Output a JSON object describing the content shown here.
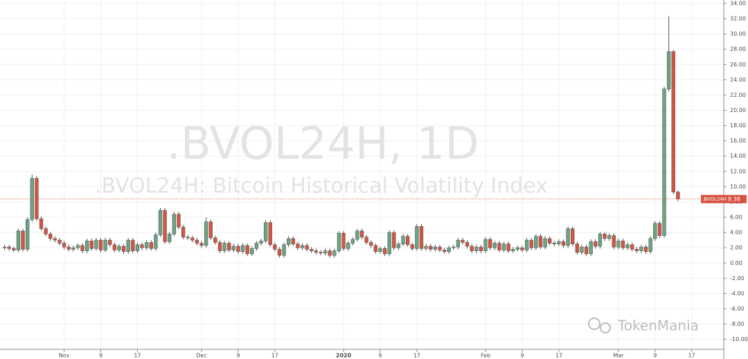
{
  "chart_data": {
    "type": "candlestick",
    "title": ".BVOL24H, 1D",
    "subtitle": ".BVOL24H: Bitcoin Historical Volatility Index",
    "logo_text": "TokenMania",
    "last_label": ".BVOL24H",
    "up_color": "#6ba583",
    "down_color": "#d75442",
    "grid": true,
    "ylim": [
      -11.3,
      34.45
    ],
    "yticks": [
      {
        "value": -10,
        "label": "-10.00"
      },
      {
        "value": -8,
        "label": "-8.00"
      },
      {
        "value": -6,
        "label": "-6.00"
      },
      {
        "value": -4,
        "label": "-4.00"
      },
      {
        "value": -2,
        "label": "-2.00"
      },
      {
        "value": 0,
        "label": "0.00"
      },
      {
        "value": 2,
        "label": "2.00"
      },
      {
        "value": 4,
        "label": "4.00"
      },
      {
        "value": 6,
        "label": "6.00"
      },
      {
        "value": 8,
        "label": "8.00"
      },
      {
        "value": 10,
        "label": "10.00"
      },
      {
        "value": 12,
        "label": "12.00"
      },
      {
        "value": 14,
        "label": "14.00"
      },
      {
        "value": 16,
        "label": "16.00"
      },
      {
        "value": 18,
        "label": "18.00"
      },
      {
        "value": 20,
        "label": "20.00"
      },
      {
        "value": 22,
        "label": "22.00"
      },
      {
        "value": 24,
        "label": "24.00"
      },
      {
        "value": 26,
        "label": "26.00"
      },
      {
        "value": 28,
        "label": "28.00"
      },
      {
        "value": 30,
        "label": "30.00"
      },
      {
        "value": 32,
        "label": "32.00"
      },
      {
        "value": 34,
        "label": "34.00"
      }
    ],
    "xlim": [
      "2019-10-18",
      "2020-03-24"
    ],
    "xticks": [
      {
        "value": "2019-11-01",
        "label": "Nov"
      },
      {
        "value": "2019-11-09",
        "label": "9"
      },
      {
        "value": "2019-11-17",
        "label": "17"
      },
      {
        "value": "2019-12-01",
        "label": "Dec"
      },
      {
        "value": "2019-12-09",
        "label": "9"
      },
      {
        "value": "2019-12-17",
        "label": "17"
      },
      {
        "value": "2020-01-01",
        "label": "2020"
      },
      {
        "value": "2020-01-09",
        "label": "9"
      },
      {
        "value": "2020-01-17",
        "label": "17"
      },
      {
        "value": "2020-02-01",
        "label": "Feb"
      },
      {
        "value": "2020-02-09",
        "label": "9"
      },
      {
        "value": "2020-02-17",
        "label": "17"
      },
      {
        "value": "2020-03-01",
        "label": "Mar"
      },
      {
        "value": "2020-03-09",
        "label": "9"
      },
      {
        "value": "2020-03-17",
        "label": "17"
      }
    ],
    "x": [
      "2019-10-19",
      "2019-10-20",
      "2019-10-21",
      "2019-10-22",
      "2019-10-23",
      "2019-10-24",
      "2019-10-25",
      "2019-10-26",
      "2019-10-27",
      "2019-10-28",
      "2019-10-29",
      "2019-10-30",
      "2019-10-31",
      "2019-11-01",
      "2019-11-02",
      "2019-11-03",
      "2019-11-04",
      "2019-11-05",
      "2019-11-06",
      "2019-11-07",
      "2019-11-08",
      "2019-11-09",
      "2019-11-10",
      "2019-11-11",
      "2019-11-12",
      "2019-11-13",
      "2019-11-14",
      "2019-11-15",
      "2019-11-16",
      "2019-11-17",
      "2019-11-18",
      "2019-11-19",
      "2019-11-20",
      "2019-11-21",
      "2019-11-22",
      "2019-11-23",
      "2019-11-24",
      "2019-11-25",
      "2019-11-26",
      "2019-11-27",
      "2019-11-28",
      "2019-11-29",
      "2019-11-30",
      "2019-12-01",
      "2019-12-02",
      "2019-12-03",
      "2019-12-04",
      "2019-12-05",
      "2019-12-06",
      "2019-12-07",
      "2019-12-08",
      "2019-12-09",
      "2019-12-10",
      "2019-12-11",
      "2019-12-12",
      "2019-12-13",
      "2019-12-14",
      "2019-12-15",
      "2019-12-16",
      "2019-12-17",
      "2019-12-18",
      "2019-12-19",
      "2019-12-20",
      "2019-12-21",
      "2019-12-22",
      "2019-12-23",
      "2019-12-24",
      "2019-12-25",
      "2019-12-26",
      "2019-12-27",
      "2019-12-28",
      "2019-12-29",
      "2019-12-30",
      "2019-12-31",
      "2020-01-01",
      "2020-01-02",
      "2020-01-03",
      "2020-01-04",
      "2020-01-05",
      "2020-01-06",
      "2020-01-07",
      "2020-01-08",
      "2020-01-09",
      "2020-01-10",
      "2020-01-11",
      "2020-01-12",
      "2020-01-13",
      "2020-01-14",
      "2020-01-15",
      "2020-01-16",
      "2020-01-17",
      "2020-01-18",
      "2020-01-19",
      "2020-01-20",
      "2020-01-21",
      "2020-01-22",
      "2020-01-23",
      "2020-01-24",
      "2020-01-25",
      "2020-01-26",
      "2020-01-27",
      "2020-01-28",
      "2020-01-29",
      "2020-01-30",
      "2020-01-31",
      "2020-02-01",
      "2020-02-02",
      "2020-02-03",
      "2020-02-04",
      "2020-02-05",
      "2020-02-06",
      "2020-02-07",
      "2020-02-08",
      "2020-02-09",
      "2020-02-10",
      "2020-02-11",
      "2020-02-12",
      "2020-02-13",
      "2020-02-14",
      "2020-02-15",
      "2020-02-16",
      "2020-02-17",
      "2020-02-18",
      "2020-02-19",
      "2020-02-20",
      "2020-02-21",
      "2020-02-22",
      "2020-02-23",
      "2020-02-24",
      "2020-02-25",
      "2020-02-26",
      "2020-02-27",
      "2020-02-28",
      "2020-02-29",
      "2020-03-01",
      "2020-03-02",
      "2020-03-03",
      "2020-03-04",
      "2020-03-05",
      "2020-03-06",
      "2020-03-07",
      "2020-03-08",
      "2020-03-09",
      "2020-03-10",
      "2020-03-11",
      "2020-03-12",
      "2020-03-13",
      "2020-03-14"
    ],
    "open": [
      2.0,
      2.1,
      1.9,
      1.7,
      4.2,
      1.8,
      5.7,
      11.1,
      5.8,
      4.5,
      3.8,
      3.2,
      3.0,
      2.6,
      2.1,
      1.8,
      2.0,
      2.3,
      1.6,
      2.9,
      1.9,
      3.0,
      1.7,
      3.0,
      2.4,
      1.7,
      2.2,
      1.5,
      3.0,
      1.6,
      2.4,
      2.0,
      2.7,
      1.9,
      3.7,
      6.9,
      2.8,
      3.8,
      6.4,
      4.7,
      3.4,
      3.3,
      3.0,
      2.6,
      2.3,
      5.4,
      3.3,
      2.7,
      1.6,
      2.6,
      1.7,
      2.2,
      1.5,
      2.3,
      1.2,
      1.9,
      2.6,
      2.9,
      5.3,
      2.4,
      1.8,
      1.0,
      2.4,
      3.2,
      2.5,
      2.0,
      2.3,
      1.8,
      1.6,
      1.4,
      1.3,
      1.6,
      1.0,
      1.6,
      3.9,
      1.9,
      2.6,
      3.1,
      4.2,
      3.4,
      2.7,
      2.3,
      1.5,
      1.9,
      1.2,
      4.0,
      2.0,
      2.5,
      3.5,
      2.4,
      1.9,
      4.8,
      1.9,
      2.2,
      1.8,
      2.1,
      1.7,
      1.5,
      2.0,
      2.1,
      3.0,
      2.7,
      2.2,
      1.6,
      2.1,
      1.6,
      3.1,
      2.0,
      2.6,
      1.7,
      2.5,
      1.6,
      1.8,
      2.0,
      1.7,
      3.0,
      2.0,
      3.5,
      2.1,
      3.2,
      2.6,
      2.5,
      2.8,
      2.3,
      4.5,
      2.5,
      1.4,
      2.1,
      1.2,
      2.8,
      2.2,
      3.8,
      3.2,
      3.6,
      2.1,
      2.9,
      2.0,
      2.4,
      1.8,
      1.6,
      2.1,
      1.5,
      3.2,
      5.2,
      3.6,
      22.8,
      27.7,
      9.3
    ],
    "high": [
      2.4,
      2.4,
      2.2,
      4.5,
      4.5,
      6.0,
      11.6,
      11.4,
      6.1,
      4.8,
      4.1,
      3.5,
      3.3,
      2.9,
      2.4,
      2.3,
      2.6,
      2.6,
      3.2,
      3.2,
      3.3,
      3.3,
      3.3,
      3.3,
      2.7,
      2.5,
      2.5,
      3.3,
      3.3,
      2.7,
      2.7,
      3.0,
      3.0,
      4.0,
      7.2,
      7.2,
      4.1,
      6.7,
      6.7,
      5.0,
      3.7,
      3.6,
      3.3,
      2.9,
      6.0,
      5.7,
      3.6,
      3.0,
      2.9,
      2.9,
      2.5,
      2.5,
      2.6,
      2.6,
      2.2,
      2.9,
      3.2,
      5.6,
      5.6,
      2.7,
      2.1,
      2.7,
      3.5,
      3.5,
      2.8,
      2.6,
      2.6,
      2.1,
      1.9,
      1.7,
      1.9,
      1.9,
      1.9,
      4.2,
      4.2,
      2.9,
      3.4,
      4.5,
      4.5,
      3.7,
      3.0,
      2.6,
      2.2,
      2.2,
      4.3,
      4.3,
      2.8,
      3.8,
      3.8,
      2.7,
      5.1,
      5.1,
      2.5,
      2.5,
      2.4,
      2.4,
      2.0,
      2.3,
      2.4,
      3.3,
      3.3,
      3.0,
      2.5,
      2.4,
      2.4,
      3.4,
      3.4,
      2.9,
      2.9,
      2.8,
      2.8,
      2.1,
      2.3,
      2.3,
      3.3,
      3.3,
      3.8,
      3.8,
      3.5,
      3.5,
      2.9,
      3.1,
      3.1,
      4.8,
      4.8,
      2.8,
      2.4,
      2.4,
      3.1,
      3.1,
      4.1,
      4.1,
      3.9,
      3.9,
      3.2,
      3.2,
      2.7,
      2.7,
      2.1,
      2.4,
      2.4,
      3.5,
      5.5,
      5.5,
      23.1,
      32.3,
      27.9,
      9.5
    ],
    "low": [
      1.7,
      1.6,
      1.4,
      1.4,
      1.5,
      1.5,
      5.4,
      5.5,
      4.2,
      3.5,
      2.9,
      2.7,
      2.3,
      1.8,
      1.5,
      1.5,
      1.7,
      1.3,
      1.3,
      1.6,
      1.6,
      1.4,
      1.4,
      2.1,
      1.4,
      1.4,
      1.2,
      1.2,
      1.3,
      1.3,
      1.7,
      1.7,
      1.6,
      1.6,
      3.4,
      2.5,
      2.5,
      3.5,
      4.4,
      3.1,
      3.0,
      2.7,
      2.3,
      2.0,
      2.0,
      3.0,
      2.4,
      1.3,
      1.3,
      1.4,
      1.4,
      1.2,
      1.2,
      0.9,
      0.9,
      1.6,
      2.3,
      2.6,
      2.1,
      1.5,
      0.7,
      0.7,
      2.1,
      2.2,
      1.7,
      1.7,
      1.5,
      1.3,
      1.1,
      1.0,
      1.0,
      0.7,
      0.7,
      1.3,
      1.6,
      1.6,
      2.3,
      2.8,
      3.1,
      2.4,
      2.0,
      1.2,
      1.2,
      0.9,
      0.9,
      1.7,
      1.7,
      2.2,
      2.1,
      1.6,
      1.6,
      1.6,
      1.6,
      1.5,
      1.5,
      1.4,
      1.2,
      1.2,
      1.7,
      1.8,
      2.4,
      1.9,
      1.3,
      1.3,
      1.3,
      1.3,
      1.7,
      1.7,
      1.4,
      1.4,
      1.3,
      1.3,
      1.5,
      1.4,
      1.4,
      1.7,
      1.7,
      1.8,
      1.8,
      2.3,
      2.2,
      2.2,
      2.0,
      2.0,
      2.2,
      1.1,
      1.1,
      0.9,
      0.9,
      1.9,
      1.9,
      2.9,
      2.9,
      1.8,
      1.8,
      1.7,
      1.7,
      1.5,
      1.3,
      1.3,
      1.2,
      1.2,
      2.9,
      3.3,
      3.3,
      22.5,
      9.0,
      8.1
    ],
    "close": [
      2.1,
      1.9,
      1.7,
      4.2,
      1.8,
      5.7,
      11.1,
      5.8,
      4.5,
      3.8,
      3.2,
      3.0,
      2.6,
      2.1,
      1.8,
      2.0,
      2.3,
      1.6,
      2.9,
      1.9,
      3.0,
      1.7,
      3.0,
      2.4,
      1.7,
      2.2,
      1.5,
      3.0,
      1.6,
      2.4,
      2.0,
      2.7,
      1.9,
      3.7,
      6.9,
      2.8,
      3.8,
      6.4,
      4.7,
      3.4,
      3.3,
      3.0,
      2.6,
      2.3,
      5.4,
      3.3,
      2.7,
      1.6,
      2.6,
      1.7,
      2.2,
      1.5,
      2.3,
      1.2,
      1.9,
      2.6,
      2.9,
      5.3,
      2.4,
      1.8,
      1.0,
      2.4,
      3.2,
      2.5,
      2.0,
      2.3,
      1.8,
      1.6,
      1.4,
      1.3,
      1.6,
      1.0,
      1.6,
      3.9,
      1.9,
      2.6,
      3.1,
      4.2,
      3.4,
      2.7,
      2.3,
      1.5,
      1.9,
      1.2,
      4.0,
      2.0,
      2.5,
      3.5,
      2.4,
      1.9,
      4.8,
      1.9,
      2.2,
      1.8,
      2.1,
      1.7,
      1.5,
      2.0,
      2.1,
      3.0,
      2.7,
      2.2,
      1.6,
      2.1,
      1.6,
      3.1,
      2.0,
      2.6,
      1.7,
      2.5,
      1.6,
      1.8,
      2.0,
      1.7,
      3.0,
      2.0,
      3.5,
      2.1,
      3.2,
      2.6,
      2.5,
      2.8,
      2.3,
      4.5,
      2.5,
      1.4,
      2.1,
      1.2,
      2.8,
      2.2,
      3.8,
      3.2,
      3.6,
      2.1,
      2.9,
      2.0,
      2.4,
      1.8,
      1.6,
      2.1,
      1.5,
      3.2,
      5.2,
      3.6,
      22.8,
      27.7,
      9.3,
      8.38
    ]
  }
}
